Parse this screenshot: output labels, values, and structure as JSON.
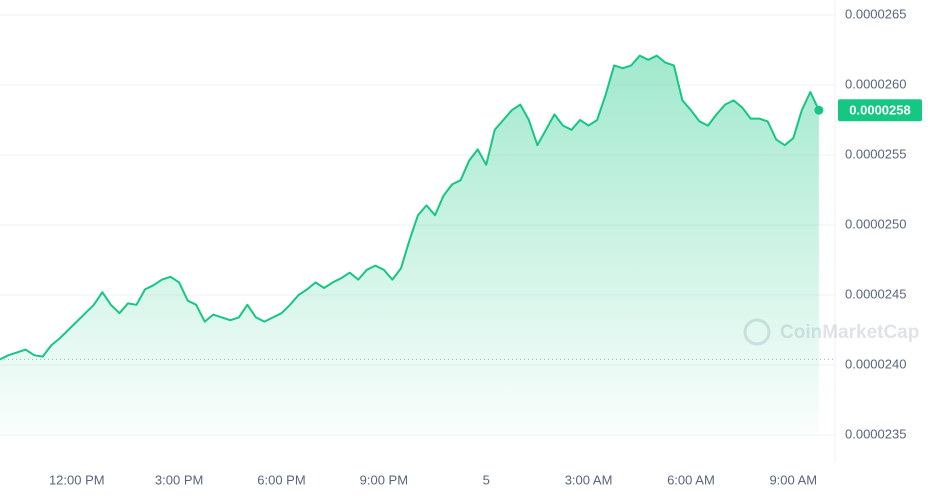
{
  "chart_data": {
    "type": "area",
    "watermark": "CoinMarketCap",
    "current_price_label": "0.0000258",
    "categories": [
      null,
      null,
      null,
      null,
      null,
      null,
      null,
      null,
      null,
      "12:00 PM",
      null,
      null,
      null,
      null,
      null,
      null,
      null,
      null,
      null,
      null,
      null,
      "3:00 PM",
      null,
      null,
      null,
      null,
      null,
      null,
      null,
      null,
      null,
      null,
      null,
      "6:00 PM",
      null,
      null,
      null,
      null,
      null,
      null,
      null,
      null,
      null,
      null,
      null,
      "9:00 PM",
      null,
      null,
      null,
      null,
      null,
      null,
      null,
      null,
      null,
      null,
      null,
      "5",
      null,
      null,
      null,
      null,
      null,
      null,
      null,
      null,
      null,
      null,
      null,
      "3:00 AM",
      null,
      null,
      null,
      null,
      null,
      null,
      null,
      null,
      null,
      null,
      null,
      "6:00 AM",
      null,
      null,
      null,
      null,
      null,
      null,
      null,
      null,
      null,
      null,
      null,
      "9:00 AM",
      null,
      null,
      null
    ],
    "series": [
      {
        "color": "#16c784",
        "values": [
          2.404e-05,
          2.407e-05,
          2.409e-05,
          2.411e-05,
          2.407e-05,
          2.406e-05,
          2.414e-05,
          2.419e-05,
          2.425e-05,
          2.431e-05,
          2.437e-05,
          2.443e-05,
          2.452e-05,
          2.443e-05,
          2.437e-05,
          2.444e-05,
          2.443e-05,
          2.454e-05,
          2.457e-05,
          2.461e-05,
          2.463e-05,
          2.459e-05,
          2.446e-05,
          2.443e-05,
          2.431e-05,
          2.436e-05,
          2.434e-05,
          2.432e-05,
          2.434e-05,
          2.443e-05,
          2.434e-05,
          2.431e-05,
          2.434e-05,
          2.437e-05,
          2.443e-05,
          2.45e-05,
          2.454e-05,
          2.459e-05,
          2.455e-05,
          2.459e-05,
          2.462e-05,
          2.466e-05,
          2.461e-05,
          2.468e-05,
          2.471e-05,
          2.468e-05,
          2.461e-05,
          2.469e-05,
          2.489e-05,
          2.507e-05,
          2.514e-05,
          2.507e-05,
          2.521e-05,
          2.529e-05,
          2.532e-05,
          2.546e-05,
          2.554e-05,
          2.543e-05,
          2.568e-05,
          2.575e-05,
          2.582e-05,
          2.586e-05,
          2.575e-05,
          2.557e-05,
          2.568e-05,
          2.579e-05,
          2.571e-05,
          2.568e-05,
          2.575e-05,
          2.571e-05,
          2.575e-05,
          2.593e-05,
          2.614e-05,
          2.612e-05,
          2.614e-05,
          2.621e-05,
          2.618e-05,
          2.621e-05,
          2.616e-05,
          2.614e-05,
          2.589e-05,
          2.582e-05,
          2.574e-05,
          2.571e-05,
          2.579e-05,
          2.586e-05,
          2.589e-05,
          2.584e-05,
          2.576e-05,
          2.576e-05,
          2.574e-05,
          2.561e-05,
          2.557e-05,
          2.562e-05,
          2.582e-05,
          2.595e-05,
          2.582e-05
        ]
      }
    ],
    "ylim": [
      2.35e-05,
      2.65e-05
    ],
    "yticks": [
      2.35e-05,
      {
        "value": 2.4e-05,
        "label": "0.0000240"
      },
      2.45e-05,
      {
        "value": 2.5e-05,
        "label": "0.0000250"
      },
      2.55e-05,
      {
        "value": 2.6e-05,
        "label": "0.0000260"
      },
      2.65e-05
    ],
    "grid": true
  }
}
